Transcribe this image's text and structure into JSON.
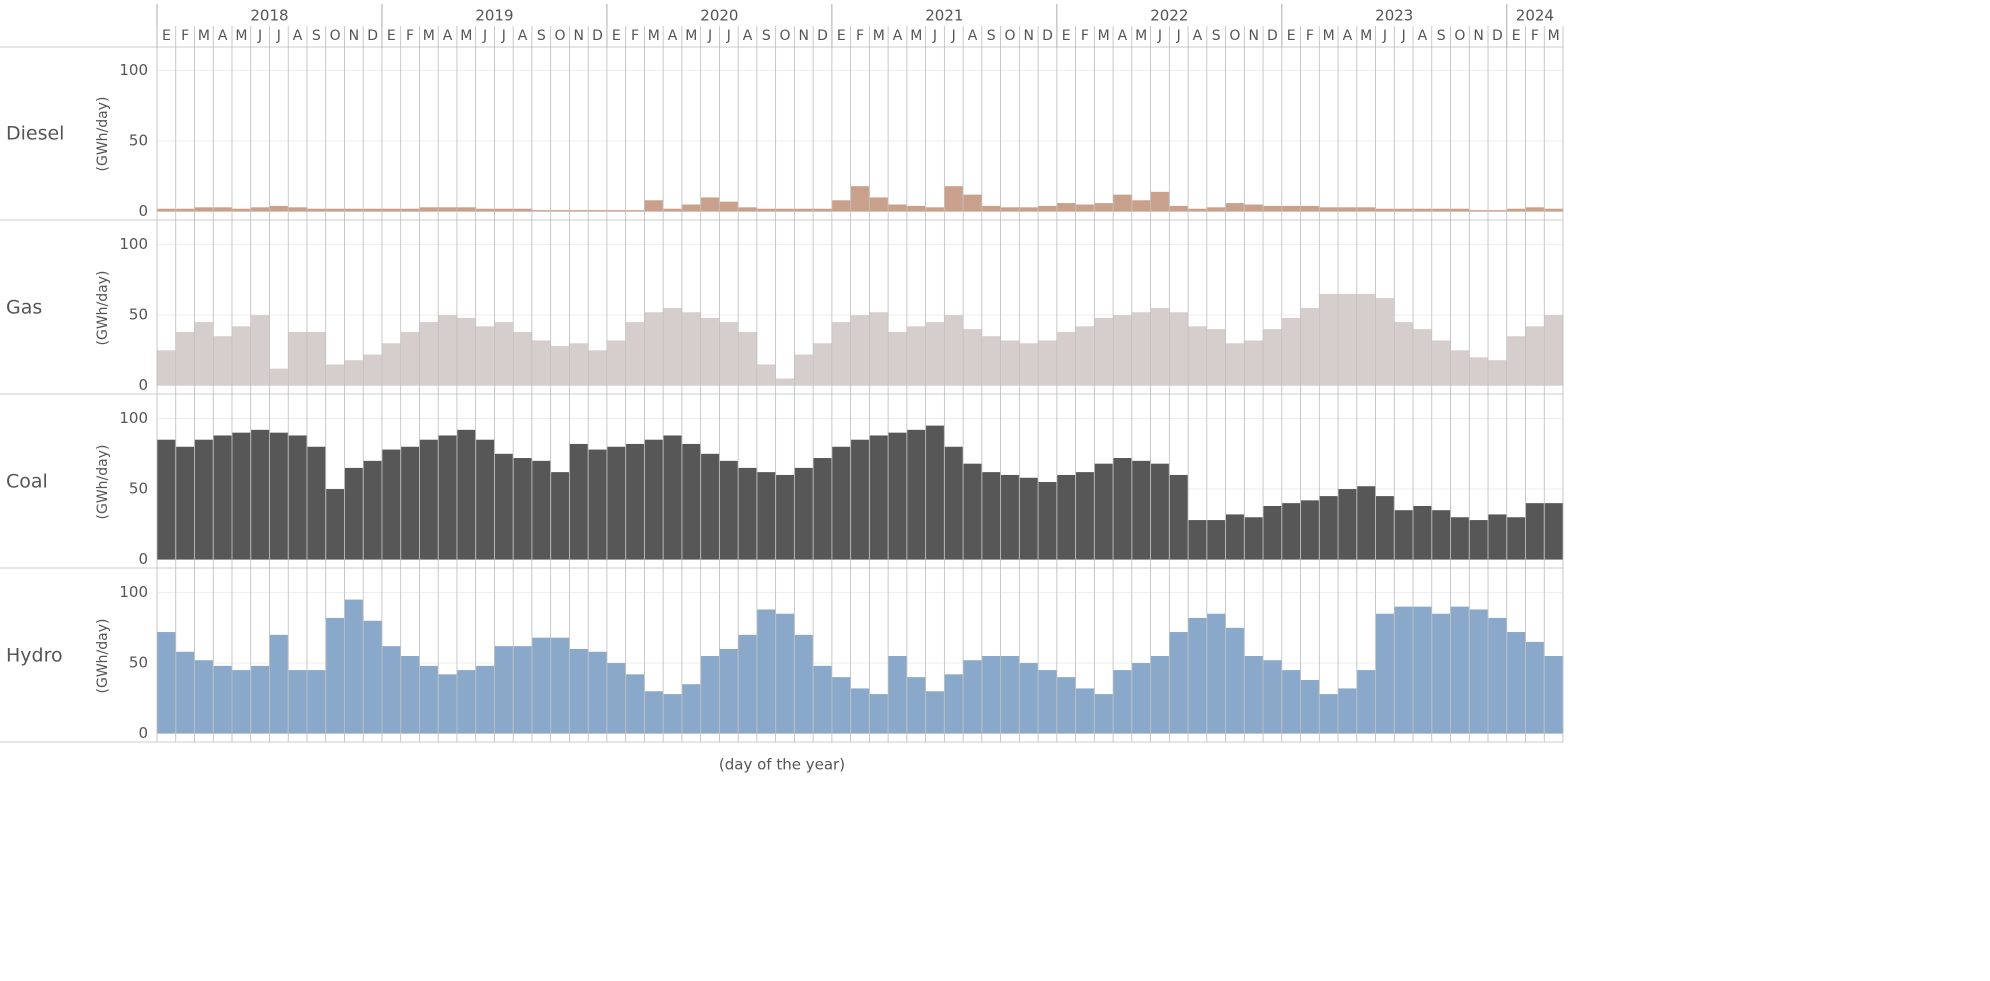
{
  "chart_data": {
    "type": "bar",
    "xlabel": "(day of the year)",
    "ylabel": "(GWh/day)",
    "years": [
      "2018",
      "2019",
      "2020",
      "2021",
      "2022",
      "2023",
      "2024"
    ],
    "categories": [
      "E",
      "F",
      "M",
      "A",
      "M",
      "J",
      "J",
      "A",
      "S",
      "O",
      "N",
      "D",
      "E",
      "F",
      "M",
      "A",
      "M",
      "J",
      "J",
      "A",
      "S",
      "O",
      "N",
      "D",
      "E",
      "F",
      "M",
      "A",
      "M",
      "J",
      "J",
      "A",
      "S",
      "O",
      "N",
      "D",
      "E",
      "F",
      "M",
      "A",
      "M",
      "J",
      "J",
      "A",
      "S",
      "O",
      "N",
      "D",
      "E",
      "F",
      "M",
      "A",
      "M",
      "J",
      "J",
      "A",
      "S",
      "O",
      "N",
      "D",
      "E",
      "F",
      "M",
      "A",
      "M",
      "J",
      "J",
      "A",
      "S",
      "O",
      "N",
      "D",
      "E",
      "F",
      "M"
    ],
    "ylim": [
      -6,
      116
    ],
    "yticks": [
      0,
      50,
      100
    ],
    "grid": true,
    "series": [
      {
        "name": "Diesel",
        "color": "#c9a08b",
        "values": [
          2,
          2,
          3,
          3,
          2,
          3,
          4,
          3,
          2,
          2,
          2,
          2,
          2,
          2,
          3,
          3,
          3,
          2,
          2,
          2,
          1,
          1,
          1,
          1,
          1,
          1,
          8,
          2,
          5,
          10,
          7,
          3,
          2,
          2,
          2,
          2,
          8,
          18,
          10,
          5,
          4,
          3,
          18,
          12,
          4,
          3,
          3,
          4,
          6,
          5,
          6,
          12,
          8,
          14,
          4,
          2,
          3,
          6,
          5,
          4,
          4,
          4,
          3,
          3,
          3,
          2,
          2,
          2,
          2,
          2,
          1,
          1,
          2,
          3,
          2
        ]
      },
      {
        "name": "Gas",
        "color": "#d6cecc",
        "values": [
          25,
          38,
          45,
          35,
          42,
          50,
          12,
          38,
          38,
          15,
          18,
          22,
          30,
          38,
          45,
          50,
          48,
          42,
          45,
          38,
          32,
          28,
          30,
          25,
          32,
          45,
          52,
          55,
          52,
          48,
          45,
          38,
          15,
          5,
          22,
          30,
          45,
          50,
          52,
          38,
          42,
          45,
          50,
          40,
          35,
          32,
          30,
          32,
          38,
          42,
          48,
          50,
          52,
          55,
          52,
          42,
          40,
          30,
          32,
          40,
          48,
          55,
          65,
          65,
          65,
          62,
          45,
          40,
          32,
          25,
          20,
          18,
          35,
          42,
          50
        ]
      },
      {
        "name": "Coal",
        "color": "#575757",
        "values": [
          85,
          80,
          85,
          88,
          90,
          92,
          90,
          88,
          80,
          50,
          65,
          70,
          78,
          80,
          85,
          88,
          92,
          85,
          75,
          72,
          70,
          62,
          82,
          78,
          80,
          82,
          85,
          88,
          82,
          75,
          70,
          65,
          62,
          60,
          65,
          72,
          80,
          85,
          88,
          90,
          92,
          95,
          80,
          68,
          62,
          60,
          58,
          55,
          60,
          62,
          68,
          72,
          70,
          68,
          60,
          28,
          28,
          32,
          30,
          38,
          40,
          42,
          45,
          50,
          52,
          45,
          35,
          38,
          35,
          30,
          28,
          32,
          30,
          40,
          40
        ]
      },
      {
        "name": "Hydro",
        "color": "#8aa8c9",
        "values": [
          72,
          58,
          52,
          48,
          45,
          48,
          70,
          45,
          45,
          82,
          95,
          80,
          62,
          55,
          48,
          42,
          45,
          48,
          62,
          62,
          68,
          68,
          60,
          58,
          50,
          42,
          30,
          28,
          35,
          55,
          60,
          70,
          88,
          85,
          70,
          48,
          40,
          32,
          28,
          55,
          40,
          30,
          42,
          52,
          55,
          55,
          50,
          45,
          40,
          32,
          28,
          45,
          50,
          55,
          72,
          82,
          85,
          75,
          55,
          52,
          45,
          38,
          28,
          32,
          45,
          85,
          90,
          90,
          85,
          90,
          88,
          82,
          72,
          65,
          55
        ]
      }
    ]
  }
}
